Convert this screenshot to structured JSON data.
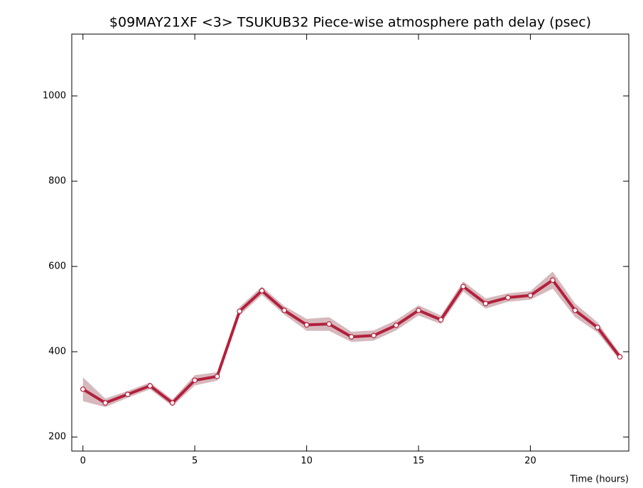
{
  "chart_data": {
    "type": "line",
    "title": "$09MAY21XF <3>  TSUKUB32  Piece-wise atmosphere path delay (psec)",
    "xlabel": "Time (hours)",
    "x": [
      0,
      1,
      2,
      3,
      4,
      5,
      6,
      7,
      8,
      9,
      10,
      11,
      12,
      13,
      14,
      15,
      16,
      17,
      18,
      19,
      20,
      21,
      22,
      23,
      24
    ],
    "series": [
      {
        "color": "#b3203c",
        "band_color": "#d6b9bd",
        "values": [
          312,
          280,
          300,
          320,
          280,
          333,
          342,
          495,
          543,
          497,
          463,
          465,
          435,
          438,
          462,
          497,
          475,
          553,
          513,
          527,
          532,
          568,
          497,
          457,
          388
        ],
        "errors": [
          28,
          10,
          8,
          8,
          8,
          12,
          10,
          10,
          10,
          10,
          14,
          16,
          12,
          12,
          12,
          12,
          10,
          12,
          12,
          10,
          10,
          20,
          16,
          12,
          8
        ]
      }
    ],
    "xlim": [
      -0.5,
      24.4
    ],
    "ylim": [
      167,
      1145
    ],
    "xticks": [
      0,
      5,
      10,
      15,
      20
    ],
    "yticks": [
      200,
      400,
      600,
      800,
      1000
    ]
  }
}
